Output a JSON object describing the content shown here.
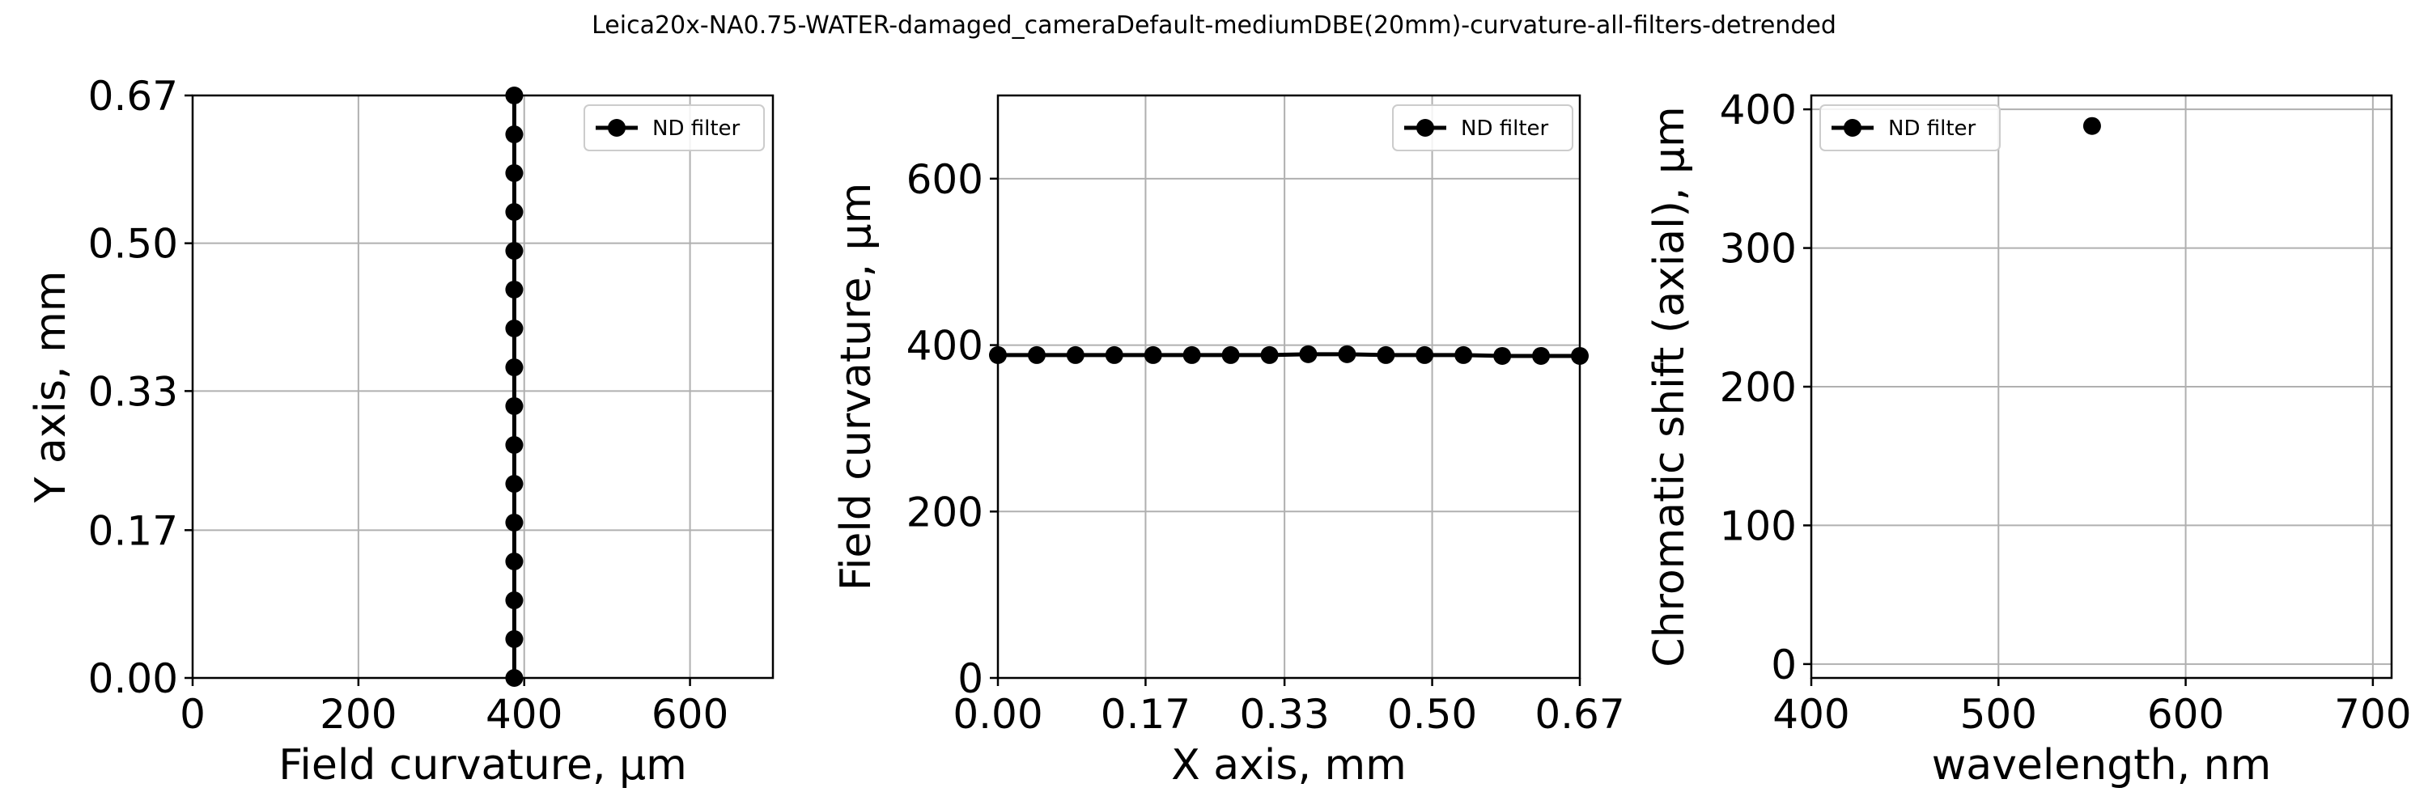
{
  "figure": {
    "title": "Leica20x-NA0.75-WATER-damaged_cameraDefault-mediumDBE(20mm)-curvature-all-filters-detrended"
  },
  "chart_data": [
    {
      "type": "line",
      "xlabel": "Field curvature, µm",
      "ylabel": "Y axis, mm",
      "xlim": [
        0,
        700
      ],
      "ylim": [
        0,
        0.67
      ],
      "xticks": [
        0,
        200,
        400,
        600
      ],
      "xtick_labels": [
        "0",
        "200",
        "400",
        "600"
      ],
      "yticks": [
        0,
        0.17,
        0.33,
        0.5,
        0.67
      ],
      "ytick_labels": [
        "0.00",
        "0.17",
        "0.33",
        "0.50",
        "0.67"
      ],
      "grid": true,
      "legend": "top-right",
      "series": [
        {
          "name": "ND filter",
          "color": "#000000",
          "marker": "circle",
          "x": [
            388,
            388,
            388,
            388,
            388,
            388,
            388,
            388,
            388,
            388,
            388,
            388,
            388,
            388,
            388,
            388
          ],
          "y": [
            0.0,
            0.0447,
            0.0893,
            0.134,
            0.1787,
            0.2233,
            0.268,
            0.3127,
            0.3573,
            0.402,
            0.4467,
            0.4913,
            0.536,
            0.5807,
            0.6253,
            0.67
          ]
        }
      ]
    },
    {
      "type": "line",
      "xlabel": "X axis, mm",
      "ylabel": "Field curvature, µm",
      "xlim": [
        0,
        0.67
      ],
      "ylim": [
        0,
        700
      ],
      "xticks": [
        0,
        0.17,
        0.33,
        0.5,
        0.67
      ],
      "xtick_labels": [
        "0.00",
        "0.17",
        "0.33",
        "0.50",
        "0.67"
      ],
      "yticks": [
        0,
        200,
        400,
        600
      ],
      "ytick_labels": [
        "0",
        "200",
        "400",
        "600"
      ],
      "grid": true,
      "legend": "top-right",
      "series": [
        {
          "name": "ND filter",
          "color": "#000000",
          "marker": "circle",
          "x": [
            0.0,
            0.0447,
            0.0893,
            0.134,
            0.1787,
            0.2233,
            0.268,
            0.3127,
            0.3573,
            0.402,
            0.4467,
            0.4913,
            0.536,
            0.5807,
            0.6253,
            0.67
          ],
          "y": [
            388,
            388,
            388,
            388,
            388,
            388,
            388,
            388,
            389,
            389,
            388,
            388,
            388,
            387,
            387,
            387
          ]
        }
      ]
    },
    {
      "type": "scatter",
      "xlabel": "wavelength, nm",
      "ylabel": "Chromatic shift (axial), µm",
      "xlim": [
        400,
        710
      ],
      "ylim": [
        -10,
        410
      ],
      "xticks": [
        400,
        500,
        600,
        700
      ],
      "xtick_labels": [
        "400",
        "500",
        "600",
        "700"
      ],
      "yticks": [
        0,
        100,
        200,
        300,
        400
      ],
      "ytick_labels": [
        "0",
        "100",
        "200",
        "300",
        "400"
      ],
      "grid": true,
      "legend": "top-left",
      "series": [
        {
          "name": "ND filter",
          "color": "#000000",
          "marker": "circle",
          "x": [
            550
          ],
          "y": [
            388
          ]
        }
      ]
    }
  ]
}
